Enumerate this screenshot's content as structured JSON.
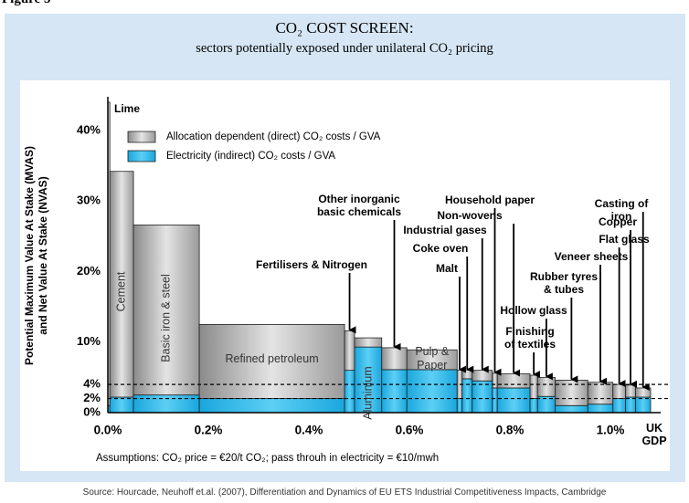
{
  "figure_label": "Figure 5",
  "source": "Source: Hourcade, Neuhoff et.al. (2007), Differentiation and Dynamics of EU ETS Industrial Competitiveness Impacts, Cambridge",
  "chart_data": {
    "type": "bar",
    "title": "CO₂ COST SCREEN:",
    "subtitle": "sectors potentially exposed under unilateral CO₂ pricing",
    "ylabel": "Potential Maximum Value At Stake (MVAS)\nand Net Value At Stake (NVAS)",
    "annotations": [
      "Assumptions: CO₂ price = €20/t CO₂; pass throuh in electricity = €10/mwh",
      "UK\nGDP"
    ],
    "categories": [
      "Lime",
      "Cement",
      "Basic iron & steel",
      "Refined petroleum",
      "Fertilisers & Nitrogen",
      "Aluminium",
      "Other inorganic\nbasic chemicals",
      "Pulp &\nPaper",
      "Malt",
      "Coke oven",
      "Industrial gases",
      "Household paper",
      "Non-wovens",
      "Finishing\nof textiles",
      "Hollow glass",
      "Rubber tyres\n& tubes",
      "Veneer sheets",
      "Flat glass",
      "Copper",
      "Casting of iron"
    ],
    "bins": [
      0,
      0.004,
      0.051,
      0.182,
      0.471,
      0.491,
      0.545,
      0.595,
      0.695,
      0.705,
      0.725,
      0.765,
      0.775,
      0.84,
      0.855,
      0.89,
      0.955,
      1.005,
      1.03,
      1.05,
      1.08
    ],
    "series": [
      {
        "name": "Allocation dependent (direct) CO₂ costs / GVA",
        "color": "#a8a8a8",
        "values": [
          43,
          32,
          24.1,
          10.5,
          5.6,
          1.3,
          3.1,
          2.8,
          4.0,
          1.2,
          1.5,
          2.1,
          2.0,
          3.3,
          2.7,
          3.6,
          3.1,
          2.0,
          1.7,
          1.3
        ]
      },
      {
        "name": "Electricity (indirect) CO₂ costs / GVA",
        "color": "#22b4e8",
        "values": [
          1,
          2.2,
          2.5,
          2.0,
          6.0,
          9.3,
          6.1,
          6.1,
          2.0,
          4.8,
          4.5,
          3.5,
          3.5,
          2.0,
          2.3,
          1.0,
          1.2,
          2.0,
          2.2,
          2.2
        ]
      }
    ],
    "xlim": [
      0,
      1.1
    ],
    "ylim": [
      0,
      44
    ],
    "xticks": [
      {
        "value": 0,
        "label": "0.0%"
      },
      {
        "value": 0.2,
        "label": "0.2%"
      },
      {
        "value": 0.4,
        "label": "0.4%"
      },
      {
        "value": 0.6,
        "label": "0.6%"
      },
      {
        "value": 0.8,
        "label": "0.8%"
      },
      {
        "value": 1.0,
        "label": "1.0%"
      }
    ],
    "yticks": [
      {
        "value": 0,
        "label": "0%"
      },
      {
        "value": 2,
        "label": "2%"
      },
      {
        "value": 4,
        "label": "4%"
      },
      {
        "value": 10,
        "label": "10%"
      },
      {
        "value": 20,
        "label": "20%"
      },
      {
        "value": 30,
        "label": "30%"
      },
      {
        "value": 40,
        "label": "40%"
      }
    ],
    "hlines": [
      2,
      4
    ],
    "grid": false,
    "legend": "upper left"
  }
}
